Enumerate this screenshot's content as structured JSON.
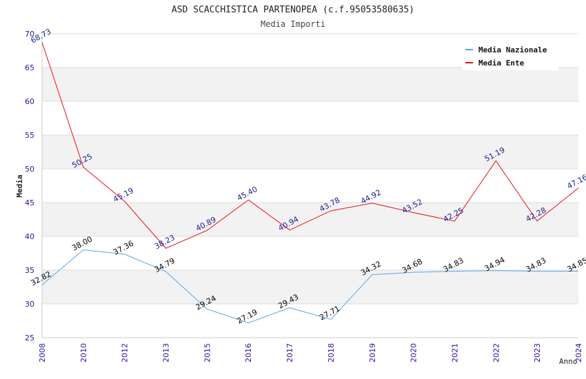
{
  "chart_data": {
    "type": "line",
    "title": "ASD SCACCHISTICA PARTENOPEA (c.f.95053580635)",
    "subtitle": "Media Importi",
    "xlabel": "Anno",
    "ylabel": "Media",
    "categories": [
      "2008",
      "2010",
      "2012",
      "2013",
      "2015",
      "2016",
      "2017",
      "2018",
      "2019",
      "2020",
      "2021",
      "2022",
      "2023",
      "2024"
    ],
    "ylim": [
      25,
      70
    ],
    "yticks": [
      25,
      30,
      35,
      40,
      45,
      50,
      55,
      60,
      65,
      70
    ],
    "legend_position": "top-right",
    "series": [
      {
        "name": "Media Nazionale",
        "color": "#5aa6e6",
        "label_color": "#000000",
        "values": [
          32.82,
          38.0,
          37.36,
          34.79,
          29.24,
          27.19,
          29.43,
          27.71,
          34.32,
          34.68,
          34.83,
          34.94,
          34.83,
          34.85
        ],
        "labels": [
          "32.82",
          "38.00",
          "37.36",
          "34.79",
          "29.24",
          "27.19",
          "29.43",
          "27.71",
          "34.32",
          "34.68",
          "34.83",
          "34.94",
          "34.83",
          "34.85"
        ]
      },
      {
        "name": "Media Ente",
        "color": "#e8101a",
        "label_color": "#1a1a8c",
        "values": [
          68.73,
          50.25,
          45.19,
          38.23,
          40.89,
          45.4,
          40.94,
          43.78,
          44.92,
          43.52,
          42.25,
          51.19,
          42.28,
          47.16
        ],
        "labels": [
          "68.73",
          "50.25",
          "45.19",
          "38.23",
          "40.89",
          "45.40",
          "40.94",
          "43.78",
          "44.92",
          "43.52",
          "42.25",
          "51.19",
          "42.28",
          "47.16"
        ]
      }
    ]
  }
}
